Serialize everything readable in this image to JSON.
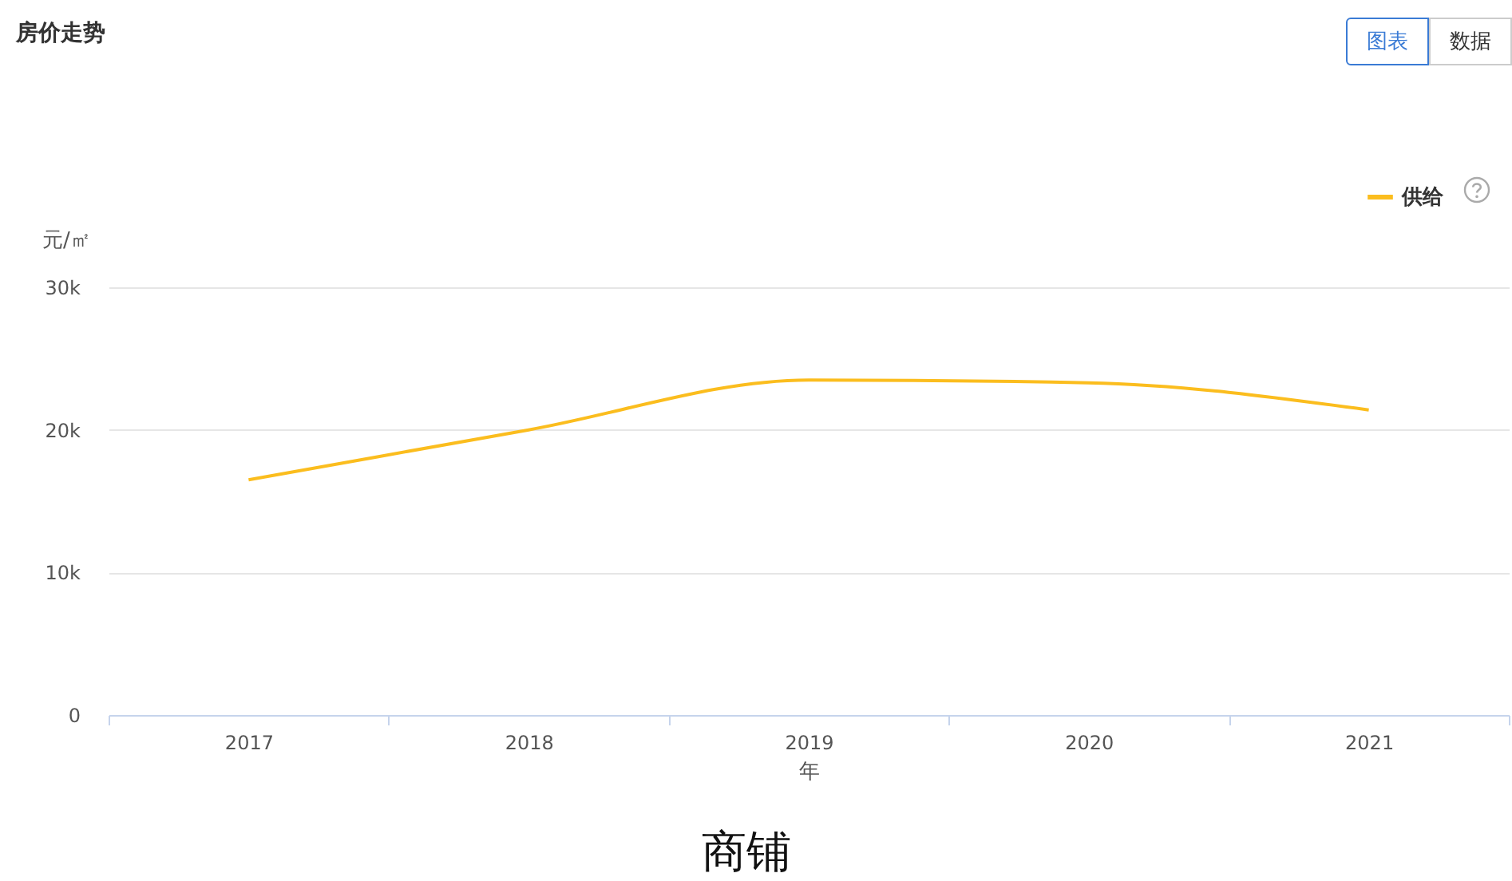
{
  "chart_data": {
    "type": "line",
    "title": "房价走势",
    "subtitle": "商铺",
    "annotations": [
      "图表",
      "数据"
    ],
    "xlabel": "年",
    "ylabel": "元/㎡",
    "categories": [
      "2017",
      "2018",
      "2019",
      "2020",
      "2021"
    ],
    "series": [
      {
        "name": "供给",
        "color": "#fbbd1e",
        "values": [
          16500,
          20000,
          23500,
          23300,
          21400
        ]
      }
    ],
    "ylim": [
      0,
      30000
    ],
    "yticks": [
      0,
      {
        "value": 10000,
        "label": "10k"
      },
      {
        "value": 20000,
        "label": "20k"
      },
      {
        "value": 30000,
        "label": "30k"
      }
    ],
    "grid": "y",
    "legend": "top right",
    "marker": "none",
    "line_style": "solid"
  }
}
